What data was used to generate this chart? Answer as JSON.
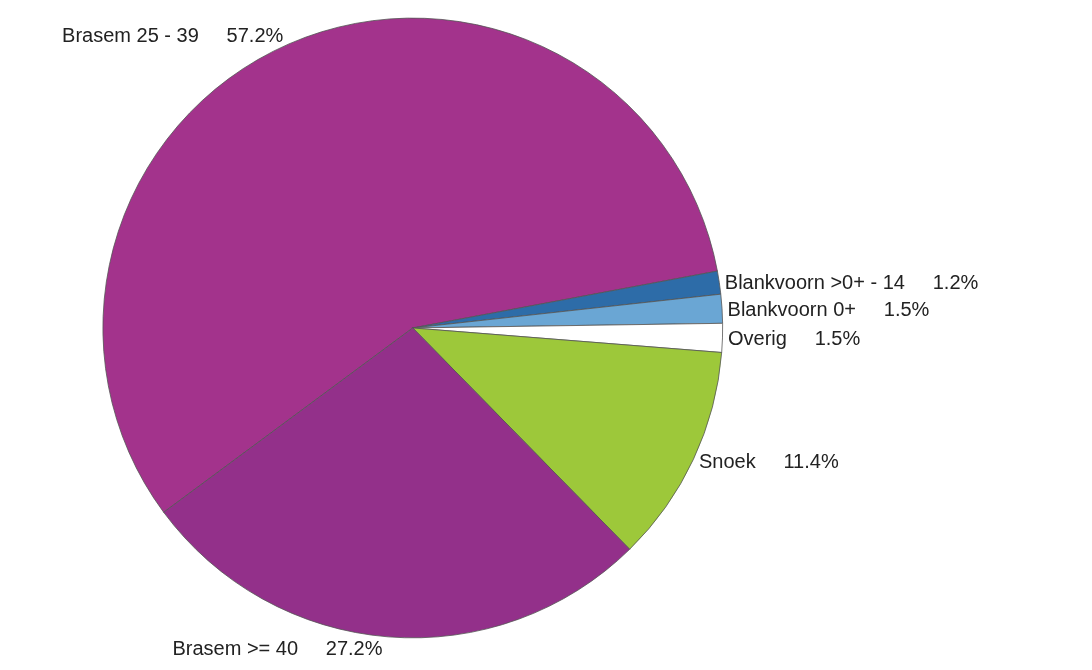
{
  "chart_data": {
    "type": "pie",
    "categories": [
      "Brasem 25 - 39",
      "Blankvoorn >0+ - 14",
      "Blankvoorn 0+",
      "Overig",
      "Snoek",
      "Brasem >= 40"
    ],
    "values": [
      57.2,
      1.2,
      1.5,
      1.5,
      11.4,
      27.2
    ],
    "value_labels": [
      "57.2%",
      "1.2%",
      "1.5%",
      "1.5%",
      "11.4%",
      "27.2%"
    ],
    "colors": [
      "#a3338c",
      "#2d6ca8",
      "#6aa6d4",
      "#ffffff",
      "#9dc83a",
      "#93308a"
    ],
    "legend": false
  }
}
